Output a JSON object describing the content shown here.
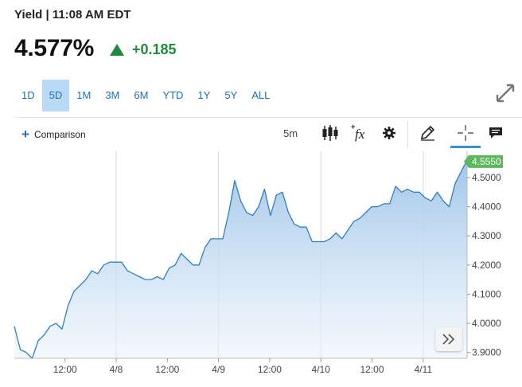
{
  "header": {
    "title": "Yield | 11:08 AM EDT",
    "price": "4.577%",
    "change": "+0.185"
  },
  "ranges": [
    "1D",
    "5D",
    "1M",
    "3M",
    "6M",
    "YTD",
    "1Y",
    "5Y",
    "ALL"
  ],
  "active_range": "5D",
  "toolbar": {
    "comparison_label": "Comparison",
    "interval": "5m",
    "fx_label": "fx"
  },
  "colors": {
    "accent": "#1f6fb2",
    "up": "#1f8a3b",
    "line": "#2f7fc1",
    "last_price": "#5cb85c"
  },
  "chart_data": {
    "type": "area",
    "x_tick_labels": [
      "12:00",
      "4/8",
      "12:00",
      "4/9",
      "12:00",
      "4/10",
      "12:00",
      "4/11"
    ],
    "y_tick_labels": [
      "4.5000",
      "4.4000",
      "4.3000",
      "4.2000",
      "4.1000",
      "4.0000",
      "3.9000"
    ],
    "ylim": [
      3.88,
      4.59
    ],
    "last_price_label": "4.5550",
    "grid": "vertical",
    "series": [
      {
        "values": [
          3.99,
          3.91,
          3.9,
          3.88,
          3.94,
          3.96,
          3.99,
          4.0,
          3.98,
          4.06,
          4.11,
          4.13,
          4.15,
          4.18,
          4.17,
          4.2,
          4.21,
          4.21,
          4.21,
          4.18,
          4.17,
          4.16,
          4.15,
          4.15,
          4.16,
          4.15,
          4.19,
          4.2,
          4.24,
          4.22,
          4.2,
          4.2,
          4.26,
          4.29,
          4.29,
          4.29,
          4.38,
          4.49,
          4.42,
          4.38,
          4.37,
          4.4,
          4.46,
          4.37,
          4.44,
          4.45,
          4.38,
          4.34,
          4.33,
          4.33,
          4.28,
          4.28,
          4.28,
          4.29,
          4.31,
          4.29,
          4.32,
          4.35,
          4.36,
          4.38,
          4.4,
          4.4,
          4.41,
          4.41,
          4.47,
          4.45,
          4.46,
          4.45,
          4.45,
          4.43,
          4.42,
          4.45,
          4.42,
          4.4,
          4.48,
          4.52,
          4.56
        ]
      }
    ]
  }
}
